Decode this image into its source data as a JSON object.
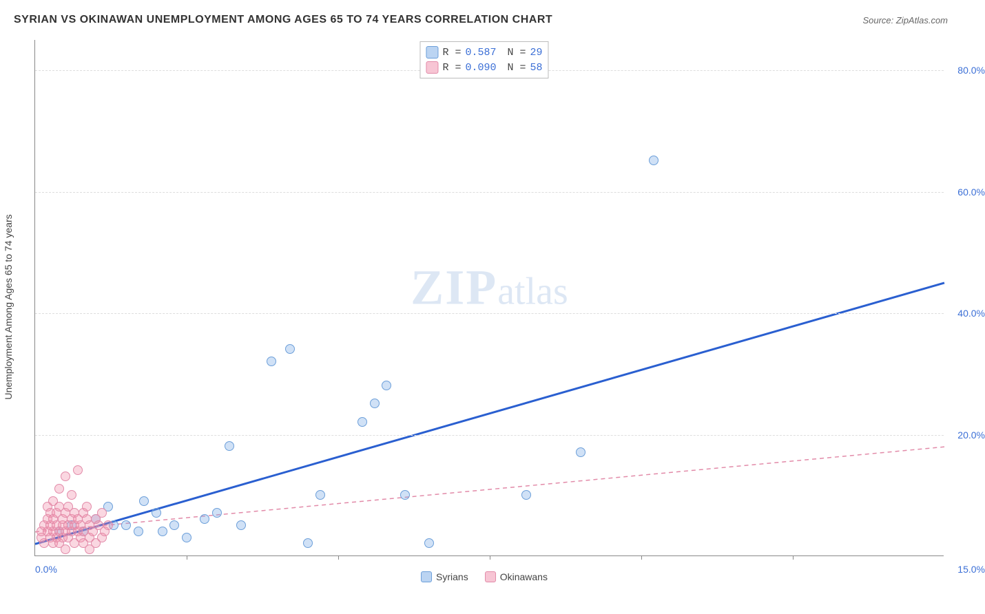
{
  "title": "SYRIAN VS OKINAWAN UNEMPLOYMENT AMONG AGES 65 TO 74 YEARS CORRELATION CHART",
  "source_label": "Source: ZipAtlas.com",
  "ylabel": "Unemployment Among Ages 65 to 74 years",
  "watermark": {
    "zip": "ZIP",
    "atlas": "atlas"
  },
  "chart": {
    "type": "scatter",
    "xlim": [
      0,
      15
    ],
    "ylim": [
      0,
      85
    ],
    "xtick_min_label": "0.0%",
    "xtick_max_label": "15.0%",
    "xtick_marks": [
      2.5,
      5.0,
      7.5,
      10.0,
      12.5
    ],
    "ytick_positions": [
      20,
      40,
      60,
      80
    ],
    "ytick_labels": [
      "20.0%",
      "40.0%",
      "60.0%",
      "80.0%"
    ],
    "grid_color": "#dddddd",
    "background_color": "#ffffff",
    "series": [
      {
        "name": "Syrians",
        "color_fill": "rgba(120,170,230,0.35)",
        "color_border": "#6b9ed9",
        "css_class": "blue",
        "R": "0.587",
        "N": "29",
        "trend": {
          "x1": 0,
          "y1": 2,
          "x2": 15,
          "y2": 45,
          "stroke": "#2a5fd0",
          "width": 3,
          "dash": "none"
        },
        "points": [
          [
            0.4,
            4
          ],
          [
            0.6,
            5
          ],
          [
            0.8,
            4
          ],
          [
            1.0,
            6
          ],
          [
            1.2,
            8
          ],
          [
            1.3,
            5
          ],
          [
            1.5,
            5
          ],
          [
            1.7,
            4
          ],
          [
            1.8,
            9
          ],
          [
            2.0,
            7
          ],
          [
            2.1,
            4
          ],
          [
            2.3,
            5
          ],
          [
            2.5,
            3
          ],
          [
            2.8,
            6
          ],
          [
            3.0,
            7
          ],
          [
            3.2,
            18
          ],
          [
            3.4,
            5
          ],
          [
            3.9,
            32
          ],
          [
            4.2,
            34
          ],
          [
            4.5,
            2
          ],
          [
            4.7,
            10
          ],
          [
            5.4,
            22
          ],
          [
            5.6,
            25
          ],
          [
            5.8,
            28
          ],
          [
            6.1,
            10
          ],
          [
            6.5,
            2
          ],
          [
            8.1,
            10
          ],
          [
            9.0,
            17
          ],
          [
            10.2,
            65
          ]
        ]
      },
      {
        "name": "Okinawans",
        "color_fill": "rgba(240,140,170,0.35)",
        "color_border": "#e28aa8",
        "css_class": "pink",
        "R": "0.090",
        "N": "58",
        "trend": {
          "x1": 0,
          "y1": 4,
          "x2": 15,
          "y2": 18,
          "stroke": "#e28aa8",
          "width": 1.5,
          "dash": "6,5"
        },
        "points": [
          [
            0.1,
            3
          ],
          [
            0.1,
            4
          ],
          [
            0.15,
            5
          ],
          [
            0.15,
            2
          ],
          [
            0.2,
            6
          ],
          [
            0.2,
            4
          ],
          [
            0.2,
            8
          ],
          [
            0.25,
            3
          ],
          [
            0.25,
            5
          ],
          [
            0.25,
            7
          ],
          [
            0.3,
            4
          ],
          [
            0.3,
            6
          ],
          [
            0.3,
            9
          ],
          [
            0.3,
            2
          ],
          [
            0.35,
            5
          ],
          [
            0.35,
            3
          ],
          [
            0.35,
            7
          ],
          [
            0.4,
            4
          ],
          [
            0.4,
            8
          ],
          [
            0.4,
            11
          ],
          [
            0.4,
            2
          ],
          [
            0.45,
            5
          ],
          [
            0.45,
            3
          ],
          [
            0.45,
            6
          ],
          [
            0.5,
            7
          ],
          [
            0.5,
            4
          ],
          [
            0.5,
            13
          ],
          [
            0.5,
            1
          ],
          [
            0.55,
            5
          ],
          [
            0.55,
            8
          ],
          [
            0.55,
            3
          ],
          [
            0.6,
            6
          ],
          [
            0.6,
            4
          ],
          [
            0.6,
            10
          ],
          [
            0.65,
            5
          ],
          [
            0.65,
            2
          ],
          [
            0.65,
            7
          ],
          [
            0.7,
            4
          ],
          [
            0.7,
            6
          ],
          [
            0.7,
            14
          ],
          [
            0.75,
            3
          ],
          [
            0.75,
            5
          ],
          [
            0.8,
            7
          ],
          [
            0.8,
            4
          ],
          [
            0.8,
            2
          ],
          [
            0.85,
            6
          ],
          [
            0.85,
            8
          ],
          [
            0.9,
            5
          ],
          [
            0.9,
            3
          ],
          [
            0.9,
            1
          ],
          [
            0.95,
            4
          ],
          [
            1.0,
            6
          ],
          [
            1.0,
            2
          ],
          [
            1.05,
            5
          ],
          [
            1.1,
            3
          ],
          [
            1.1,
            7
          ],
          [
            1.15,
            4
          ],
          [
            1.2,
            5
          ]
        ]
      }
    ]
  },
  "legend_top": {
    "r_label": "R =",
    "n_label": "N ="
  },
  "legend_bottom": {
    "items": [
      "Syrians",
      "Okinawans"
    ]
  }
}
